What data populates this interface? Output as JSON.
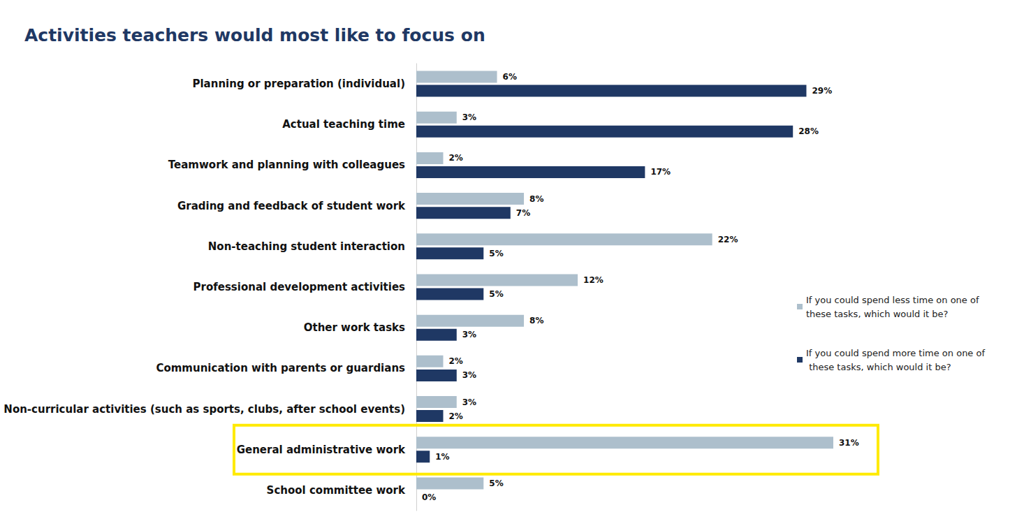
{
  "chart_data": {
    "type": "bar",
    "orientation": "horizontal",
    "title": "Activities teachers would most like to focus on",
    "categories": [
      "Planning or preparation (individual)",
      "Actual teaching time",
      "Teamwork and planning with colleagues",
      "Grading and feedback of student work",
      "Non-teaching student interaction",
      "Professional development activities",
      "Other work tasks",
      "Communication with parents or guardians",
      "Non-curricular activities (such as sports, clubs, after school events)",
      "General administrative work",
      "School committee work"
    ],
    "series": [
      {
        "name": "If you could spend less time on one of these tasks, which would it be?",
        "color": "#adbfcc",
        "values": [
          6,
          3,
          2,
          8,
          22,
          12,
          8,
          2,
          3,
          31,
          5
        ],
        "value_labels": [
          "6%",
          "3%",
          "2%",
          "8%",
          "22%",
          "12%",
          "8%",
          "2%",
          "3%",
          "31%",
          "5%"
        ]
      },
      {
        "name": "If you could spend more time on one of these tasks, which would it be?",
        "color": "#1f3864",
        "values": [
          29,
          28,
          17,
          7,
          5,
          5,
          3,
          3,
          2,
          1,
          0
        ],
        "value_labels": [
          "29%",
          "28%",
          "17%",
          "7%",
          "5%",
          "5%",
          "3%",
          "3%",
          "2%",
          "1%",
          "0%"
        ]
      }
    ],
    "xlim": [
      0,
      31
    ],
    "grid": false,
    "legend": "right",
    "data_labels": true,
    "tick_labels": "y"
  }
}
